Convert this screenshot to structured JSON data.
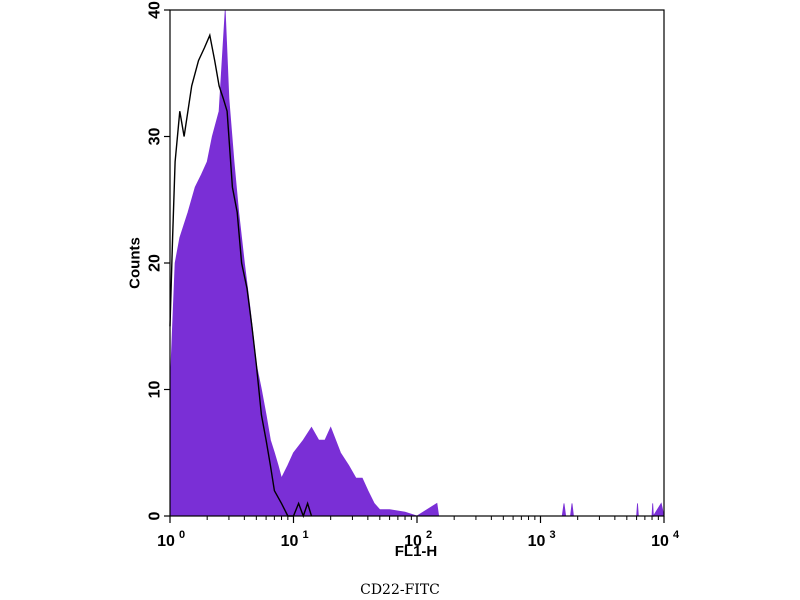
{
  "caption": "CD22-FITC",
  "chart_data": {
    "type": "histogram-overlay",
    "xlabel": "FL1-H",
    "ylabel": "Counts",
    "x_scale": "log",
    "xlim": [
      1,
      10000
    ],
    "ylim": [
      0,
      40
    ],
    "y_ticks": [
      0,
      10,
      20,
      30,
      40
    ],
    "x_ticks": [
      {
        "value": 1,
        "base": "10",
        "exp": "0"
      },
      {
        "value": 10,
        "base": "10",
        "exp": "1"
      },
      {
        "value": 100,
        "base": "10",
        "exp": "2"
      },
      {
        "value": 1000,
        "base": "10",
        "exp": "3"
      },
      {
        "value": 10000,
        "base": "10",
        "exp": "4"
      }
    ],
    "grid": false,
    "series": [
      {
        "style": "filled",
        "color": "#7a2fd6",
        "points": [
          [
            1.0,
            10
          ],
          [
            1.1,
            20
          ],
          [
            1.2,
            22
          ],
          [
            1.4,
            24
          ],
          [
            1.6,
            26
          ],
          [
            1.8,
            27
          ],
          [
            2.0,
            28
          ],
          [
            2.2,
            30
          ],
          [
            2.5,
            32
          ],
          [
            2.8,
            40
          ],
          [
            3.0,
            33
          ],
          [
            3.3,
            28
          ],
          [
            3.6,
            24
          ],
          [
            4.0,
            20
          ],
          [
            4.5,
            16
          ],
          [
            5.0,
            12
          ],
          [
            5.5,
            10
          ],
          [
            6.0,
            8
          ],
          [
            6.5,
            6
          ],
          [
            7.0,
            5
          ],
          [
            7.5,
            4
          ],
          [
            8.0,
            3
          ],
          [
            9.0,
            4
          ],
          [
            10.0,
            5
          ],
          [
            12.0,
            6
          ],
          [
            14.0,
            7
          ],
          [
            16.0,
            6
          ],
          [
            18.0,
            6
          ],
          [
            20.0,
            7
          ],
          [
            24.0,
            5
          ],
          [
            28.0,
            4
          ],
          [
            32.0,
            3
          ],
          [
            36.0,
            3
          ],
          [
            40.0,
            2
          ],
          [
            45.0,
            1
          ],
          [
            50.0,
            0.5
          ],
          [
            60.0,
            0.5
          ],
          [
            80.0,
            0.3
          ],
          [
            100.0,
            0
          ],
          [
            145.0,
            1
          ],
          [
            150.0,
            0
          ],
          [
            1500.0,
            0
          ],
          [
            1550.0,
            1
          ],
          [
            1600.0,
            0
          ],
          [
            1750.0,
            0
          ],
          [
            1800.0,
            1
          ],
          [
            1850.0,
            0
          ],
          [
            6000.0,
            0
          ],
          [
            6100.0,
            1
          ],
          [
            6200.0,
            0
          ],
          [
            8000.0,
            0
          ],
          [
            8100.0,
            1
          ],
          [
            8200.0,
            0
          ],
          [
            9500.0,
            1
          ],
          [
            10000.0,
            0
          ]
        ]
      },
      {
        "style": "outline",
        "color": "#000000",
        "points": [
          [
            1.0,
            15
          ],
          [
            1.05,
            22
          ],
          [
            1.1,
            28
          ],
          [
            1.2,
            32
          ],
          [
            1.3,
            30
          ],
          [
            1.5,
            34
          ],
          [
            1.7,
            36
          ],
          [
            1.9,
            37
          ],
          [
            2.1,
            38
          ],
          [
            2.3,
            36
          ],
          [
            2.5,
            34
          ],
          [
            2.7,
            33
          ],
          [
            2.9,
            32
          ],
          [
            3.2,
            26
          ],
          [
            3.5,
            24
          ],
          [
            3.8,
            20
          ],
          [
            4.2,
            18
          ],
          [
            4.6,
            15
          ],
          [
            5.0,
            12
          ],
          [
            5.5,
            8
          ],
          [
            6.0,
            6
          ],
          [
            6.5,
            4
          ],
          [
            7.0,
            2
          ],
          [
            8.0,
            1
          ],
          [
            9.0,
            0
          ],
          [
            10.0,
            0
          ],
          [
            11.0,
            1
          ],
          [
            12.0,
            0
          ],
          [
            13.0,
            1
          ],
          [
            14.0,
            0
          ]
        ]
      }
    ]
  }
}
